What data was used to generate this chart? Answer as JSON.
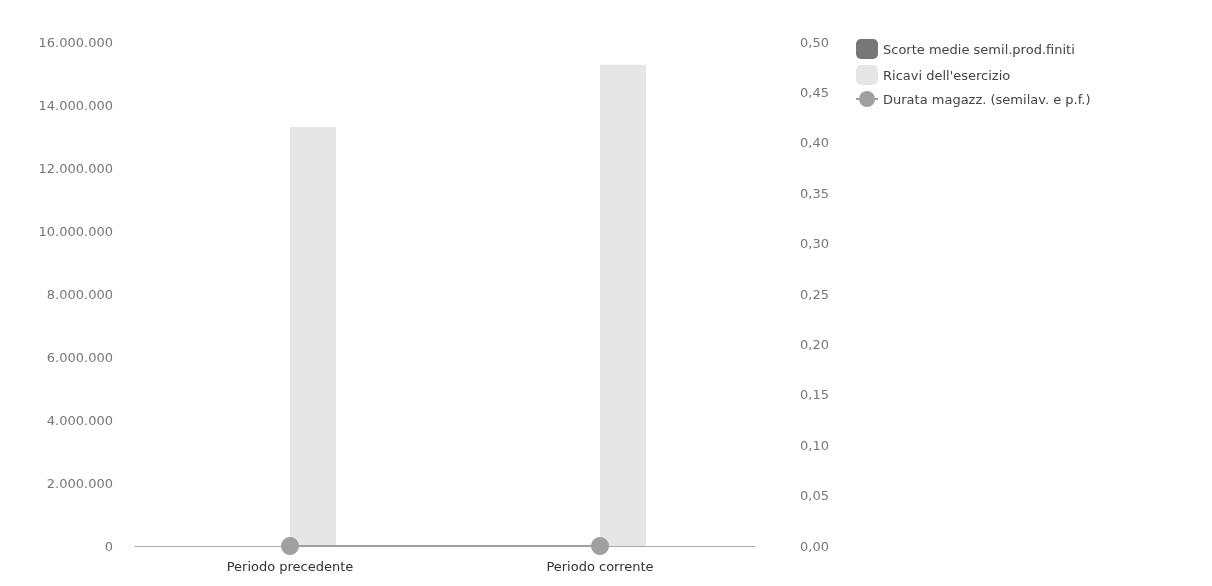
{
  "chart_data": {
    "type": "bar",
    "categories": [
      "Periodo precedente",
      "Periodo corrente"
    ],
    "series": [
      {
        "name": "Scorte medie semil.prod.finiti",
        "color": "#777777",
        "values": [
          0,
          0
        ]
      },
      {
        "name": "Ricavi dell'esercizio",
        "color": "#e6e6e6",
        "values": [
          13300000,
          15280000
        ]
      },
      {
        "name": "Durata magazz. (semilav. e p.f.)",
        "type": "line",
        "axis": "y2",
        "color": "#a0a0a0",
        "values": [
          0,
          0
        ]
      }
    ],
    "ylim": [
      0,
      16000000
    ],
    "yticks": [
      {
        "value": 0,
        "label": "0"
      },
      {
        "value": 2000000,
        "label": "2.000.000"
      },
      {
        "value": 4000000,
        "label": "4.000.000"
      },
      {
        "value": 6000000,
        "label": "6.000.000"
      },
      {
        "value": 8000000,
        "label": "8.000.000"
      },
      {
        "value": 10000000,
        "label": "10.000.000"
      },
      {
        "value": 12000000,
        "label": "12.000.000"
      },
      {
        "value": 14000000,
        "label": "14.000.000"
      },
      {
        "value": 16000000,
        "label": "16.000.000"
      }
    ],
    "y2lim": [
      0,
      0.5
    ],
    "y2ticks": [
      {
        "value": 0,
        "label": "0,00"
      },
      {
        "value": 0.05,
        "label": "0,05"
      },
      {
        "value": 0.1,
        "label": "0,10"
      },
      {
        "value": 0.15,
        "label": "0,15"
      },
      {
        "value": 0.2,
        "label": "0,20"
      },
      {
        "value": 0.25,
        "label": "0,25"
      },
      {
        "value": 0.3,
        "label": "0,30"
      },
      {
        "value": 0.35,
        "label": "0,35"
      },
      {
        "value": 0.4,
        "label": "0,40"
      },
      {
        "value": 0.45,
        "label": "0,45"
      },
      {
        "value": 0.5,
        "label": "0,50"
      }
    ],
    "grid": false,
    "legend": "top right",
    "marker": "circle"
  }
}
